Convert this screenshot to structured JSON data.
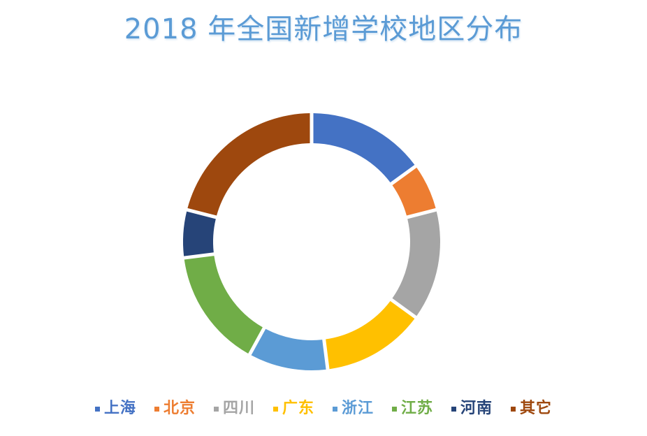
{
  "chart_data": {
    "type": "pie",
    "subtype": "donut",
    "title": "2018 年全国新增学校地区分布",
    "categories": [
      "上海",
      "北京",
      "四川",
      "广东",
      "浙江",
      "江苏",
      "河南",
      "其它"
    ],
    "values": [
      15,
      6,
      14,
      13,
      10,
      15,
      6,
      21
    ],
    "colors": [
      "#4472c4",
      "#ed7d31",
      "#a5a5a5",
      "#ffc000",
      "#5b9bd5",
      "#70ad47",
      "#264478",
      "#9e480e"
    ],
    "legend_position": "bottom"
  }
}
